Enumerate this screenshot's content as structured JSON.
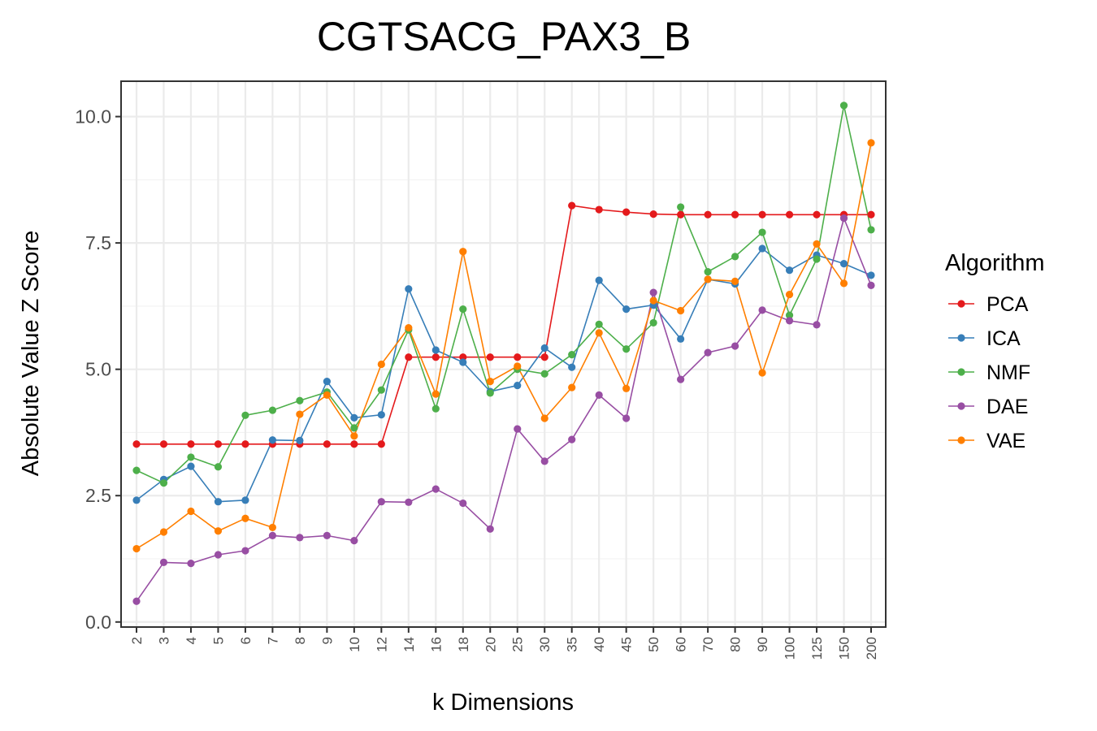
{
  "chart_data": {
    "type": "line",
    "title": "CGTSACG_PAX3_B",
    "xlabel": "k Dimensions",
    "ylabel": "Absolute Value Z Score",
    "categories": [
      "2",
      "3",
      "4",
      "5",
      "6",
      "7",
      "8",
      "9",
      "10",
      "12",
      "14",
      "16",
      "18",
      "20",
      "25",
      "30",
      "35",
      "40",
      "45",
      "50",
      "60",
      "70",
      "80",
      "90",
      "100",
      "125",
      "150",
      "200"
    ],
    "ylim": [
      -0.1,
      10.7
    ],
    "yticks": [
      0.0,
      2.5,
      5.0,
      7.5,
      10.0
    ],
    "ytick_labels": [
      "0.0",
      "2.5",
      "5.0",
      "7.5",
      "10.0"
    ],
    "grid": true,
    "legend": {
      "title": "Algorithm",
      "position": "right"
    },
    "series": [
      {
        "name": "PCA",
        "color": "#e41a1c",
        "values": [
          3.52,
          3.52,
          3.52,
          3.52,
          3.52,
          3.52,
          3.52,
          3.52,
          3.52,
          3.52,
          5.24,
          5.24,
          5.24,
          5.24,
          5.24,
          5.24,
          8.24,
          8.16,
          8.11,
          8.07,
          8.06,
          8.06,
          8.06,
          8.06,
          8.06,
          8.06,
          8.06,
          8.06
        ]
      },
      {
        "name": "ICA",
        "color": "#377eb8",
        "values": [
          2.41,
          2.82,
          3.08,
          2.38,
          2.41,
          3.6,
          3.59,
          4.76,
          4.04,
          4.1,
          6.59,
          5.38,
          5.14,
          4.56,
          4.68,
          5.42,
          5.04,
          6.76,
          6.19,
          6.27,
          5.6,
          6.78,
          6.69,
          7.39,
          6.96,
          7.26,
          7.09,
          6.86
        ]
      },
      {
        "name": "NMF",
        "color": "#4daf4a",
        "values": [
          3.0,
          2.75,
          3.26,
          3.07,
          4.09,
          4.19,
          4.38,
          4.55,
          3.84,
          4.59,
          5.78,
          4.22,
          6.19,
          4.53,
          5.0,
          4.91,
          5.29,
          5.89,
          5.4,
          5.92,
          8.21,
          6.93,
          7.23,
          7.71,
          6.07,
          7.18,
          10.22,
          7.76
        ]
      },
      {
        "name": "DAE",
        "color": "#984ea3",
        "values": [
          0.41,
          1.18,
          1.16,
          1.33,
          1.41,
          1.71,
          1.67,
          1.71,
          1.61,
          2.38,
          2.37,
          2.63,
          2.35,
          1.84,
          3.82,
          3.18,
          3.61,
          4.49,
          4.03,
          6.52,
          4.8,
          5.33,
          5.46,
          6.17,
          5.96,
          5.88,
          7.99,
          6.66
        ]
      },
      {
        "name": "VAE",
        "color": "#ff7f00",
        "values": [
          1.45,
          1.78,
          2.19,
          1.8,
          2.05,
          1.87,
          4.11,
          4.49,
          3.68,
          5.1,
          5.82,
          4.51,
          7.33,
          4.76,
          5.06,
          4.03,
          4.64,
          5.72,
          4.62,
          6.36,
          6.16,
          6.78,
          6.74,
          4.93,
          6.48,
          7.48,
          6.7,
          9.48
        ]
      }
    ]
  }
}
